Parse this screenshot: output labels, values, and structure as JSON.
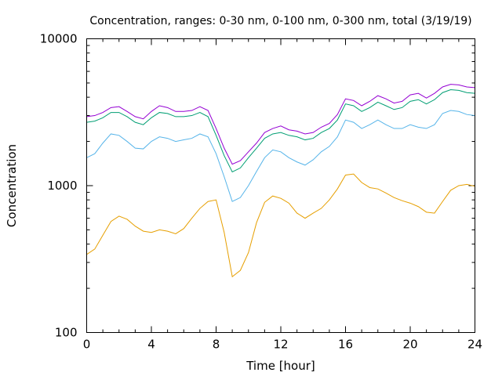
{
  "chart_data": {
    "type": "line",
    "title": "Concentration, ranges: 0-30 nm, 0-100 nm, 0-300 nm, total (3/19/19)",
    "xlabel": "Time [hour]",
    "ylabel": "Concentration",
    "xlim": [
      0,
      24
    ],
    "ylim": [
      100,
      10000
    ],
    "yscale": "log",
    "grid": false,
    "x_ticks": [
      0,
      4,
      8,
      12,
      16,
      20,
      24
    ],
    "x_tick_labels": [
      "0",
      "4",
      "8",
      "12",
      "16",
      "20",
      "24"
    ],
    "y_ticks": [
      100,
      1000,
      10000
    ],
    "y_tick_labels": [
      "100",
      "1000",
      "10000"
    ],
    "series": [
      {
        "color": "#e69f00",
        "x": [
          0,
          0.5,
          1,
          1.5,
          2,
          2.5,
          3,
          3.5,
          4,
          4.5,
          5,
          5.5,
          6,
          6.5,
          7,
          7.5,
          8,
          8.5,
          9,
          9.5,
          10,
          10.5,
          11,
          11.5,
          12,
          12.5,
          13,
          13.5,
          14,
          14.5,
          15,
          15.5,
          16,
          16.5,
          17,
          17.5,
          18,
          18.5,
          19,
          19.5,
          20,
          20.5,
          21,
          21.5,
          22,
          22.5,
          23,
          23.5,
          24
        ],
        "values": [
          340,
          370,
          460,
          570,
          620,
          590,
          530,
          490,
          480,
          500,
          490,
          470,
          510,
          600,
          700,
          780,
          800,
          480,
          240,
          265,
          350,
          560,
          770,
          850,
          820,
          760,
          650,
          600,
          650,
          700,
          800,
          950,
          1180,
          1200,
          1050,
          970,
          950,
          890,
          830,
          790,
          760,
          720,
          660,
          650,
          780,
          930,
          1000,
          1020,
          990
        ]
      },
      {
        "color": "#56b4e9",
        "x": [
          0,
          0.5,
          1,
          1.5,
          2,
          2.5,
          3,
          3.5,
          4,
          4.5,
          5,
          5.5,
          6,
          6.5,
          7,
          7.5,
          8,
          8.5,
          9,
          9.5,
          10,
          10.5,
          11,
          11.5,
          12,
          12.5,
          13,
          13.5,
          14,
          14.5,
          15,
          15.5,
          16,
          16.5,
          17,
          17.5,
          18,
          18.5,
          19,
          19.5,
          20,
          20.5,
          21,
          21.5,
          22,
          22.5,
          23,
          23.5,
          24
        ],
        "values": [
          1550,
          1650,
          1950,
          2250,
          2200,
          2000,
          1800,
          1780,
          2000,
          2150,
          2100,
          2000,
          2050,
          2100,
          2250,
          2150,
          1650,
          1150,
          780,
          830,
          1000,
          1250,
          1550,
          1750,
          1700,
          1550,
          1450,
          1380,
          1500,
          1700,
          1850,
          2150,
          2800,
          2700,
          2450,
          2600,
          2800,
          2600,
          2450,
          2450,
          2600,
          2500,
          2450,
          2600,
          3100,
          3250,
          3200,
          3050,
          3000
        ]
      },
      {
        "color": "#009e73",
        "x": [
          0,
          0.5,
          1,
          1.5,
          2,
          2.5,
          3,
          3.5,
          4,
          4.5,
          5,
          5.5,
          6,
          6.5,
          7,
          7.5,
          8,
          8.5,
          9,
          9.5,
          10,
          10.5,
          11,
          11.5,
          12,
          12.5,
          13,
          13.5,
          14,
          14.5,
          15,
          15.5,
          16,
          16.5,
          17,
          17.5,
          18,
          18.5,
          19,
          19.5,
          20,
          20.5,
          21,
          21.5,
          22,
          22.5,
          23,
          23.5,
          24
        ],
        "values": [
          2700,
          2750,
          2900,
          3150,
          3150,
          2950,
          2700,
          2600,
          2900,
          3150,
          3100,
          2950,
          2950,
          3000,
          3150,
          2950,
          2200,
          1600,
          1240,
          1320,
          1550,
          1800,
          2100,
          2250,
          2300,
          2200,
          2150,
          2050,
          2100,
          2300,
          2450,
          2800,
          3600,
          3500,
          3200,
          3400,
          3700,
          3500,
          3300,
          3400,
          3750,
          3850,
          3600,
          3850,
          4300,
          4500,
          4450,
          4300,
          4250
        ]
      },
      {
        "color": "#9400d3",
        "x": [
          0,
          0.5,
          1,
          1.5,
          2,
          2.5,
          3,
          3.5,
          4,
          4.5,
          5,
          5.5,
          6,
          6.5,
          7,
          7.5,
          8,
          8.5,
          9,
          9.5,
          10,
          10.5,
          11,
          11.5,
          12,
          12.5,
          13,
          13.5,
          14,
          14.5,
          15,
          15.5,
          16,
          16.5,
          17,
          17.5,
          18,
          18.5,
          19,
          19.5,
          20,
          20.5,
          21,
          21.5,
          22,
          22.5,
          23,
          23.5,
          24
        ],
        "values": [
          2950,
          3000,
          3150,
          3400,
          3450,
          3200,
          2950,
          2850,
          3200,
          3500,
          3400,
          3200,
          3200,
          3250,
          3450,
          3250,
          2450,
          1800,
          1400,
          1480,
          1700,
          1950,
          2300,
          2450,
          2550,
          2400,
          2350,
          2250,
          2300,
          2500,
          2650,
          3050,
          3900,
          3800,
          3500,
          3750,
          4100,
          3900,
          3650,
          3750,
          4150,
          4250,
          3950,
          4250,
          4700,
          4900,
          4850,
          4700,
          4650
        ]
      }
    ]
  }
}
